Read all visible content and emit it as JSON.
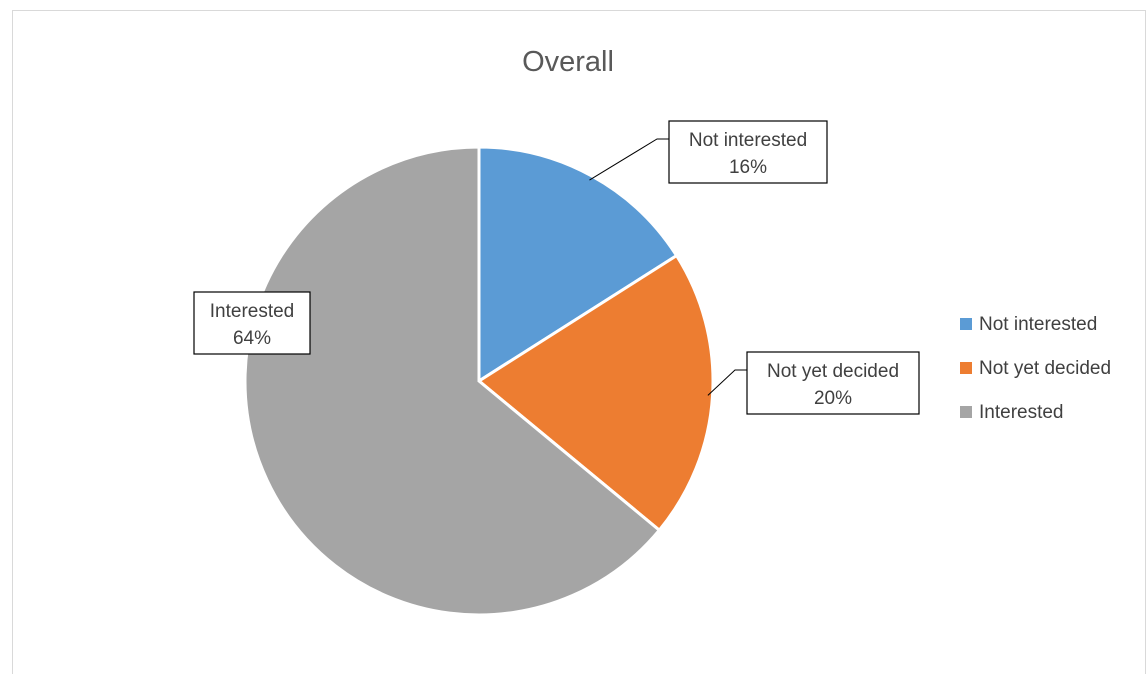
{
  "chart_data": {
    "type": "pie",
    "title": "Overall",
    "categories": [
      "Not interested",
      "Not yet decided",
      "Interested"
    ],
    "values": [
      16,
      20,
      64
    ],
    "labels": [
      {
        "name": "Not interested",
        "percent": "16%"
      },
      {
        "name": "Not yet decided",
        "percent": "20%"
      },
      {
        "name": "Interested",
        "percent": "64%"
      }
    ],
    "colors": [
      "#5b9bd5",
      "#ed7d31",
      "#a5a5a5"
    ],
    "legend": {
      "placement": "right",
      "entries": [
        "Not interested",
        "Not yet decided",
        "Interested"
      ]
    }
  }
}
